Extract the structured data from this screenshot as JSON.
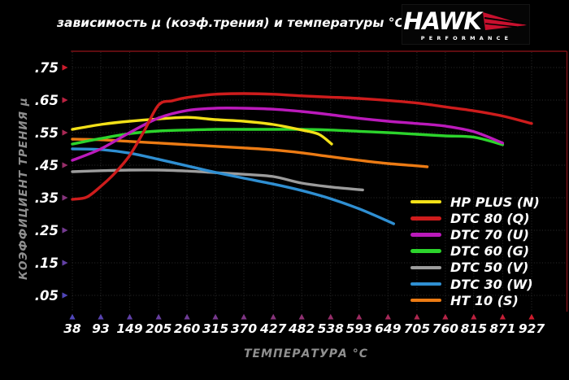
{
  "logo": {
    "brand": "HAWK",
    "subtitle": "PERFORMANCE",
    "accent": "#c8102e"
  },
  "chart_data": {
    "type": "line",
    "title": "зависимость μ (коэф.трения) и температуры °C",
    "xlabel": "ТЕМПЕРАТУРА °C",
    "ylabel": "КОЭФФИЦИЕНТ ТРЕНИЯ μ",
    "x_ticks": [
      38,
      93,
      149,
      205,
      260,
      315,
      370,
      427,
      482,
      538,
      593,
      649,
      705,
      760,
      815,
      871,
      927
    ],
    "y_ticks": [
      0.05,
      0.15,
      0.25,
      0.35,
      0.45,
      0.55,
      0.65,
      0.75
    ],
    "y_tick_labels": [
      ".05",
      ".15",
      ".25",
      ".35",
      ".45",
      ".55",
      ".65",
      ".75"
    ],
    "xlim": [
      38,
      927
    ],
    "ylim": [
      0,
      0.8
    ],
    "grid": true,
    "legend_position": "inside-right",
    "series": [
      {
        "name": "HP PLUS (N)",
        "color": "#f2e018",
        "points": [
          [
            38,
            0.56
          ],
          [
            93,
            0.575
          ],
          [
            149,
            0.585
          ],
          [
            205,
            0.592
          ],
          [
            260,
            0.597
          ],
          [
            315,
            0.59
          ],
          [
            370,
            0.585
          ],
          [
            427,
            0.575
          ],
          [
            482,
            0.558
          ],
          [
            515,
            0.545
          ],
          [
            540,
            0.515
          ]
        ]
      },
      {
        "name": "DTC 80 (Q)",
        "color": "#ce1c1c",
        "points": [
          [
            38,
            0.345
          ],
          [
            66,
            0.352
          ],
          [
            93,
            0.385
          ],
          [
            120,
            0.425
          ],
          [
            149,
            0.48
          ],
          [
            177,
            0.555
          ],
          [
            205,
            0.635
          ],
          [
            232,
            0.648
          ],
          [
            260,
            0.658
          ],
          [
            315,
            0.668
          ],
          [
            370,
            0.67
          ],
          [
            427,
            0.668
          ],
          [
            482,
            0.663
          ],
          [
            538,
            0.659
          ],
          [
            593,
            0.655
          ],
          [
            649,
            0.649
          ],
          [
            705,
            0.641
          ],
          [
            760,
            0.629
          ],
          [
            815,
            0.617
          ],
          [
            871,
            0.601
          ],
          [
            927,
            0.578
          ]
        ]
      },
      {
        "name": "DTC 70 (U)",
        "color": "#bb1abb",
        "points": [
          [
            38,
            0.465
          ],
          [
            93,
            0.5
          ],
          [
            149,
            0.55
          ],
          [
            205,
            0.595
          ],
          [
            260,
            0.618
          ],
          [
            315,
            0.625
          ],
          [
            370,
            0.625
          ],
          [
            427,
            0.622
          ],
          [
            482,
            0.615
          ],
          [
            538,
            0.605
          ],
          [
            593,
            0.594
          ],
          [
            649,
            0.585
          ],
          [
            705,
            0.578
          ],
          [
            760,
            0.57
          ],
          [
            815,
            0.553
          ],
          [
            871,
            0.518
          ]
        ]
      },
      {
        "name": "DTC 60 (G)",
        "color": "#2cd42c",
        "points": [
          [
            38,
            0.515
          ],
          [
            93,
            0.532
          ],
          [
            149,
            0.547
          ],
          [
            205,
            0.555
          ],
          [
            260,
            0.558
          ],
          [
            315,
            0.56
          ],
          [
            370,
            0.56
          ],
          [
            427,
            0.56
          ],
          [
            482,
            0.56
          ],
          [
            538,
            0.558
          ],
          [
            593,
            0.554
          ],
          [
            649,
            0.55
          ],
          [
            705,
            0.545
          ],
          [
            760,
            0.54
          ],
          [
            815,
            0.536
          ],
          [
            871,
            0.513
          ]
        ]
      },
      {
        "name": "DTC 50 (V)",
        "color": "#9c9c9c",
        "points": [
          [
            38,
            0.43
          ],
          [
            93,
            0.433
          ],
          [
            149,
            0.435
          ],
          [
            205,
            0.435
          ],
          [
            260,
            0.432
          ],
          [
            315,
            0.427
          ],
          [
            370,
            0.422
          ],
          [
            427,
            0.415
          ],
          [
            482,
            0.395
          ],
          [
            538,
            0.383
          ],
          [
            600,
            0.374
          ]
        ]
      },
      {
        "name": "DTC 30 (W)",
        "color": "#2f8fd2",
        "points": [
          [
            38,
            0.5
          ],
          [
            93,
            0.498
          ],
          [
            149,
            0.487
          ],
          [
            205,
            0.468
          ],
          [
            260,
            0.448
          ],
          [
            315,
            0.428
          ],
          [
            370,
            0.41
          ],
          [
            427,
            0.392
          ],
          [
            482,
            0.372
          ],
          [
            538,
            0.347
          ],
          [
            593,
            0.316
          ],
          [
            649,
            0.278
          ],
          [
            660,
            0.27
          ]
        ]
      },
      {
        "name": "HT 10 (S)",
        "color": "#ec7b14",
        "points": [
          [
            38,
            0.53
          ],
          [
            93,
            0.528
          ],
          [
            149,
            0.523
          ],
          [
            205,
            0.518
          ],
          [
            260,
            0.513
          ],
          [
            315,
            0.508
          ],
          [
            370,
            0.503
          ],
          [
            427,
            0.497
          ],
          [
            482,
            0.488
          ],
          [
            538,
            0.476
          ],
          [
            593,
            0.465
          ],
          [
            649,
            0.455
          ],
          [
            705,
            0.448
          ],
          [
            725,
            0.445
          ]
        ]
      }
    ],
    "axis_colors": {
      "tick_arrow_blue": "#5046b9",
      "tick_arrow_red": "#cd1c2d",
      "grid": "#2d2d2d",
      "border_dark_red": "#7c1016",
      "tick_text": "#ffffff",
      "axis_text_gray": "#8f8f8f"
    }
  }
}
